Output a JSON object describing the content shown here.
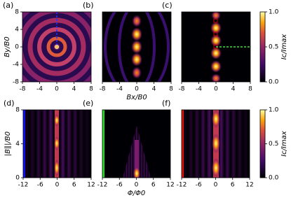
{
  "chart_data": [
    {
      "type": "heatmap",
      "title": "(a)",
      "xlim": [
        -8,
        8
      ],
      "xticks": [
        -8,
        -4,
        0,
        4,
        8
      ],
      "ylim": [
        -8,
        8
      ],
      "yticks": [
        -8,
        -4,
        0,
        4,
        8
      ],
      "ylabel": "By/B0"
    },
    {
      "type": "heatmap",
      "title": "(b)",
      "xlim": [
        -8,
        8
      ],
      "xticks": [
        -8,
        -4,
        0,
        4,
        8
      ],
      "ylim": [
        -8,
        8
      ],
      "xlabel": "Bx/B0"
    },
    {
      "type": "heatmap",
      "title": "(c)",
      "xlim": [
        -8,
        8
      ],
      "xticks": [
        -8,
        -4,
        0,
        4,
        8
      ],
      "ylim": [
        -8,
        8
      ]
    },
    {
      "type": "heatmap",
      "title": "(d)",
      "xlim": [
        -12,
        12
      ],
      "xticks": [
        -12,
        -6,
        0,
        6,
        12
      ],
      "ylim": [
        0,
        8
      ],
      "yticks": [
        0,
        4,
        8
      ],
      "ylabel": "|B∥|/B0"
    },
    {
      "type": "heatmap",
      "title": "(e)",
      "xlim": [
        -12,
        12
      ],
      "xticks": [
        -12,
        -6,
        0,
        6,
        12
      ],
      "ylim": [
        0,
        8
      ],
      "xlabel": "Φ/Φ0"
    },
    {
      "type": "heatmap",
      "title": "(f)",
      "xlim": [
        -12,
        12
      ],
      "xticks": [
        -12,
        -6,
        0,
        6,
        12
      ],
      "ylim": [
        0,
        8
      ]
    }
  ],
  "colorbars": [
    {
      "label": "Ic/Imax",
      "lim": [
        0,
        1
      ],
      "ticks": [
        {
          "value": 0,
          "label": "0.0"
        },
        {
          "value": 0.5,
          "label": "0.5"
        },
        {
          "value": 1,
          "label": "1.0"
        }
      ]
    },
    {
      "label": "Ic/Imax",
      "lim": [
        0,
        1
      ],
      "ticks": [
        {
          "value": 0,
          "label": "0.0"
        },
        {
          "value": 0.5,
          "label": "0.5"
        },
        {
          "value": 1,
          "label": "1.0"
        }
      ]
    }
  ]
}
